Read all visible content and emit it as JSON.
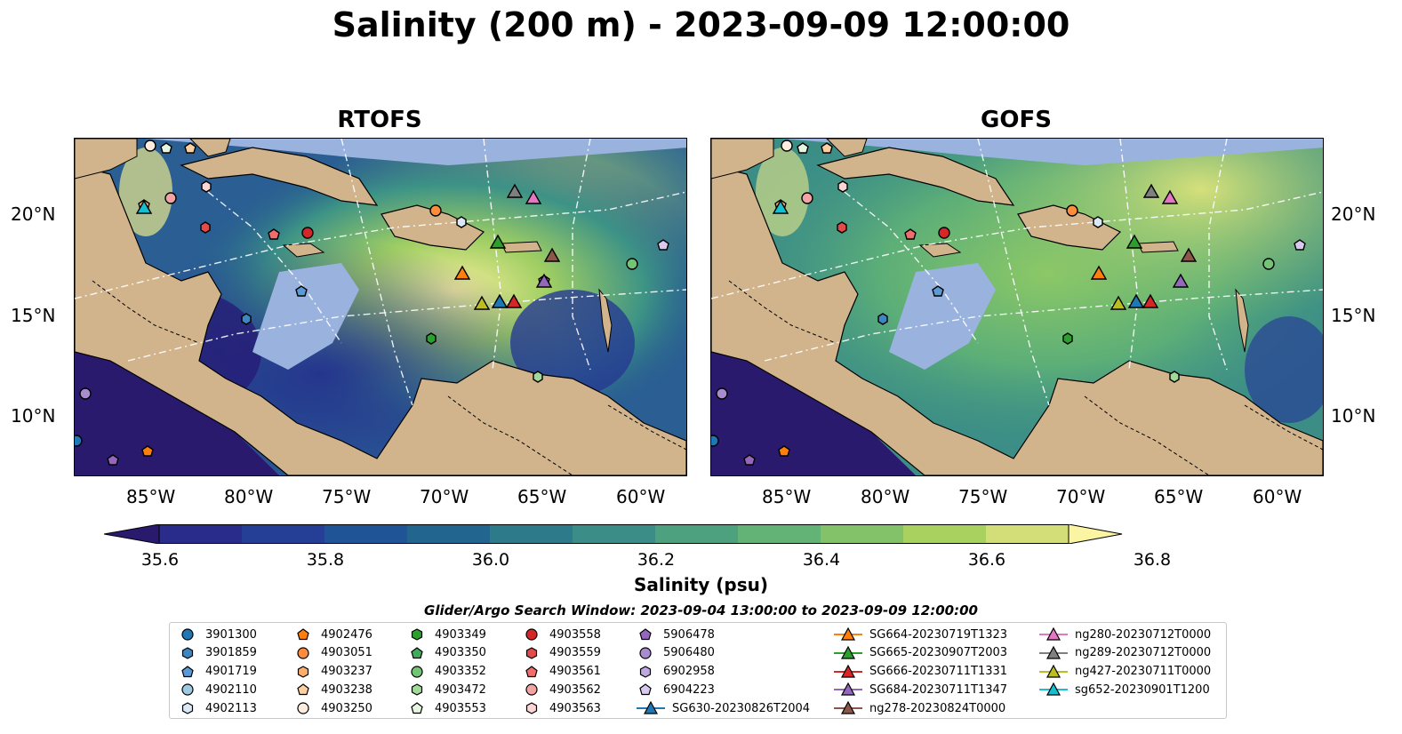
{
  "title": "Salinity (200 m) - 2023-09-09 12:00:00",
  "panels": [
    {
      "title": "RTOFS"
    },
    {
      "title": "GOFS"
    }
  ],
  "lon_labels": [
    "85°W",
    "80°W",
    "75°W",
    "70°W",
    "65°W",
    "60°W"
  ],
  "lat_labels": [
    "20°N",
    "15°N",
    "10°N"
  ],
  "colorbar": {
    "label": "Salinity (psu)",
    "ticks": [
      "35.6",
      "35.8",
      "36.0",
      "36.2",
      "36.4",
      "36.6",
      "36.8"
    ],
    "colors": [
      "#2a1a6e",
      "#2a2c8c",
      "#253f96",
      "#1f5497",
      "#22668f",
      "#2c7a8a",
      "#3a8e87",
      "#4da17e",
      "#63b276",
      "#84c26a",
      "#a8d160",
      "#d4de78",
      "#fbf4a2"
    ]
  },
  "search_window": "Glider/Argo Search Window: 2023-09-04 13:00:00 to 2023-09-09 12:00:00",
  "legend": [
    {
      "label": "3901300",
      "marker": "circle",
      "color": "#1f77b4"
    },
    {
      "label": "3901859",
      "marker": "hexagon",
      "color": "#3e86c1"
    },
    {
      "label": "4901719",
      "marker": "pentagon",
      "color": "#5a9bd5"
    },
    {
      "label": "4902110",
      "marker": "circle",
      "color": "#9ecae1"
    },
    {
      "label": "4902113",
      "marker": "hexagon",
      "color": "#dbe9f6"
    },
    {
      "label": "4902476",
      "marker": "pentagon",
      "color": "#ff7f0e"
    },
    {
      "label": "4903051",
      "marker": "circle",
      "color": "#fd8d3c"
    },
    {
      "label": "4903237",
      "marker": "hexagon",
      "color": "#fdae6b"
    },
    {
      "label": "4903238",
      "marker": "pentagon",
      "color": "#fdd0a2"
    },
    {
      "label": "4903250",
      "marker": "circle",
      "color": "#feedde"
    },
    {
      "label": "4903349",
      "marker": "hexagon",
      "color": "#2ca02c"
    },
    {
      "label": "4903350",
      "marker": "pentagon",
      "color": "#41ab5d"
    },
    {
      "label": "4903352",
      "marker": "circle",
      "color": "#74c476"
    },
    {
      "label": "4903472",
      "marker": "hexagon",
      "color": "#a1d99b"
    },
    {
      "label": "4903553",
      "marker": "pentagon",
      "color": "#e5f5e0"
    },
    {
      "label": "4903558",
      "marker": "circle",
      "color": "#d62728"
    },
    {
      "label": "4903559",
      "marker": "hexagon",
      "color": "#e34a4a"
    },
    {
      "label": "4903561",
      "marker": "pentagon",
      "color": "#ef6d6d"
    },
    {
      "label": "4903562",
      "marker": "circle",
      "color": "#f4a3a3"
    },
    {
      "label": "4903563",
      "marker": "hexagon",
      "color": "#fcd5d5"
    },
    {
      "label": "5906478",
      "marker": "pentagon",
      "color": "#9467bd"
    },
    {
      "label": "5906480",
      "marker": "circle",
      "color": "#a98bd0"
    },
    {
      "label": "6902958",
      "marker": "hexagon",
      "color": "#bfa7df"
    },
    {
      "label": "6904223",
      "marker": "pentagon",
      "color": "#d9c9ee"
    },
    {
      "label": "SG630-20230826T2004",
      "marker": "triangle-line",
      "color": "#1f77b4"
    },
    {
      "label": "SG664-20230719T1323",
      "marker": "triangle-line",
      "color": "#ff7f0e"
    },
    {
      "label": "SG665-20230907T2003",
      "marker": "triangle-line",
      "color": "#2ca02c"
    },
    {
      "label": "SG666-20230711T1331",
      "marker": "triangle-line",
      "color": "#d62728"
    },
    {
      "label": "SG684-20230711T1347",
      "marker": "triangle-line",
      "color": "#9467bd"
    },
    {
      "label": "ng278-20230824T0000",
      "marker": "triangle-line",
      "color": "#8c564b"
    },
    {
      "label": "ng280-20230712T0000",
      "marker": "triangle-line",
      "color": "#e377c2"
    },
    {
      "label": "ng289-20230712T0000",
      "marker": "triangle-line",
      "color": "#7f7f7f"
    },
    {
      "label": "ng427-20230711T0000",
      "marker": "triangle-line",
      "color": "#bcbd22"
    },
    {
      "label": "sg652-20230901T1200",
      "marker": "triangle-line",
      "color": "#17becf"
    }
  ],
  "colors": {
    "land": "#d2b48c",
    "shelf": "#9ab3de",
    "deep": "#2a1a6e"
  }
}
